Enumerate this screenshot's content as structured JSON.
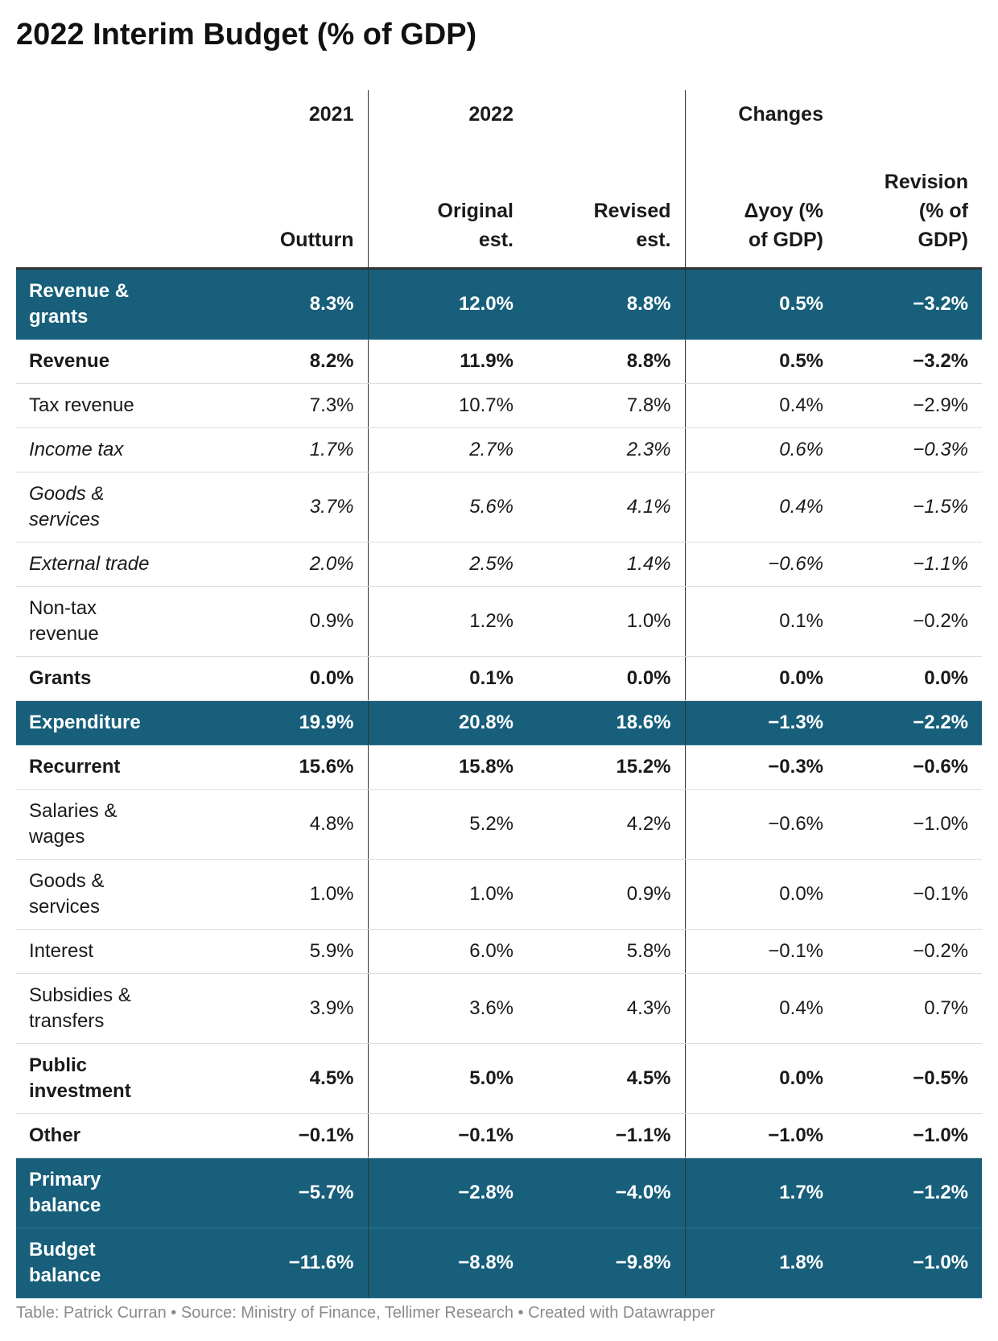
{
  "header": {
    "title": "2022 Interim Budget (% of GDP)"
  },
  "table": {
    "columns": [
      {
        "group": "2021",
        "label": "Outturn"
      },
      {
        "group": "2022",
        "label": "Original est."
      },
      {
        "label": "Revised est."
      },
      {
        "group": "Changes",
        "label": "Δyoy (% of GDP)"
      },
      {
        "label": "Revision (% of GDP)"
      }
    ],
    "highlight_color": "#175f7b",
    "rows": [
      {
        "label": "Revenue & grants",
        "style": "highlight",
        "values": [
          "8.3%",
          "12.0%",
          "8.8%",
          "0.5%",
          "−3.2%"
        ]
      },
      {
        "label": "Revenue",
        "style": "bold",
        "values": [
          "8.2%",
          "11.9%",
          "8.8%",
          "0.5%",
          "−3.2%"
        ]
      },
      {
        "label": "Tax revenue",
        "style": "normal",
        "values": [
          "7.3%",
          "10.7%",
          "7.8%",
          "0.4%",
          "−2.9%"
        ]
      },
      {
        "label": "Income tax",
        "style": "italic",
        "values": [
          "1.7%",
          "2.7%",
          "2.3%",
          "0.6%",
          "−0.3%"
        ]
      },
      {
        "label": "Goods & services",
        "style": "italic",
        "values": [
          "3.7%",
          "5.6%",
          "4.1%",
          "0.4%",
          "−1.5%"
        ]
      },
      {
        "label": "External trade",
        "style": "italic",
        "values": [
          "2.0%",
          "2.5%",
          "1.4%",
          "−0.6%",
          "−1.1%"
        ]
      },
      {
        "label": "Non-tax revenue",
        "style": "normal",
        "values": [
          "0.9%",
          "1.2%",
          "1.0%",
          "0.1%",
          "−0.2%"
        ]
      },
      {
        "label": "Grants",
        "style": "bold",
        "values": [
          "0.0%",
          "0.1%",
          "0.0%",
          "0.0%",
          "0.0%"
        ]
      },
      {
        "label": "Expenditure",
        "style": "highlight",
        "values": [
          "19.9%",
          "20.8%",
          "18.6%",
          "−1.3%",
          "−2.2%"
        ]
      },
      {
        "label": "Recurrent",
        "style": "bold",
        "values": [
          "15.6%",
          "15.8%",
          "15.2%",
          "−0.3%",
          "−0.6%"
        ]
      },
      {
        "label": "Salaries & wages",
        "style": "normal",
        "values": [
          "4.8%",
          "5.2%",
          "4.2%",
          "−0.6%",
          "−1.0%"
        ]
      },
      {
        "label": "Goods & services",
        "style": "normal",
        "values": [
          "1.0%",
          "1.0%",
          "0.9%",
          "0.0%",
          "−0.1%"
        ]
      },
      {
        "label": "Interest",
        "style": "normal",
        "values": [
          "5.9%",
          "6.0%",
          "5.8%",
          "−0.1%",
          "−0.2%"
        ]
      },
      {
        "label": "Subsidies & transfers",
        "style": "normal",
        "values": [
          "3.9%",
          "3.6%",
          "4.3%",
          "0.4%",
          "0.7%"
        ]
      },
      {
        "label": "Public investment",
        "style": "bold",
        "values": [
          "4.5%",
          "5.0%",
          "4.5%",
          "0.0%",
          "−0.5%"
        ]
      },
      {
        "label": "Other",
        "style": "bold",
        "values": [
          "−0.1%",
          "−0.1%",
          "−1.1%",
          "−1.0%",
          "−1.0%"
        ]
      },
      {
        "label": "Primary balance",
        "style": "highlight",
        "values": [
          "−5.7%",
          "−2.8%",
          "−4.0%",
          "1.7%",
          "−1.2%"
        ]
      },
      {
        "label": "Budget balance",
        "style": "highlight",
        "values": [
          "−11.6%",
          "−8.8%",
          "−9.8%",
          "1.8%",
          "−1.0%"
        ]
      }
    ]
  },
  "footer": {
    "text": "Table: Patrick Curran • Source: Ministry of Finance, Tellimer Research • Created with Datawrapper"
  }
}
